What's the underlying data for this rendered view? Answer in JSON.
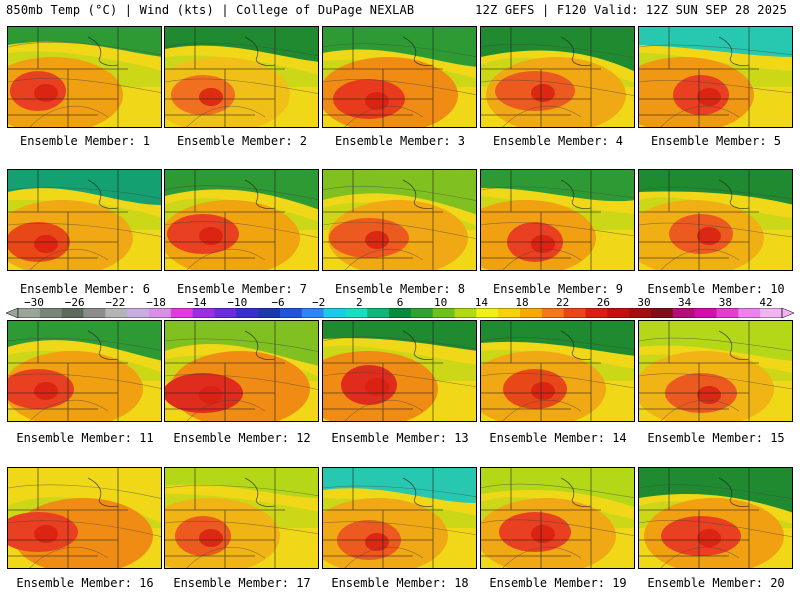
{
  "header": {
    "left": "850mb Temp (°C) | Wind (kts) | College of DuPage NEXLAB",
    "right": "12Z GEFS | F120 Valid: 12Z SUN SEP 28 2025"
  },
  "label_prefix": "Ensemble Member:",
  "members": [
    {
      "number": "1"
    },
    {
      "number": "2"
    },
    {
      "number": "3"
    },
    {
      "number": "4"
    },
    {
      "number": "5"
    },
    {
      "number": "6"
    },
    {
      "number": "7"
    },
    {
      "number": "8"
    },
    {
      "number": "9"
    },
    {
      "number": "10"
    },
    {
      "number": "11"
    },
    {
      "number": "12"
    },
    {
      "number": "13"
    },
    {
      "number": "14"
    },
    {
      "number": "15"
    },
    {
      "number": "16"
    },
    {
      "number": "17"
    },
    {
      "number": "18"
    },
    {
      "number": "19"
    },
    {
      "number": "20"
    }
  ],
  "colorbar": {
    "labels": [
      "-30",
      "-26",
      "-22",
      "-18",
      "-14",
      "-10",
      "-6",
      "-2",
      "2",
      "6",
      "10",
      "14",
      "18",
      "22",
      "26",
      "30",
      "34",
      "38",
      "42"
    ],
    "colors": [
      "#9aa59a",
      "#7a857a",
      "#5f6a5f",
      "#8c8c8c",
      "#b4b4b4",
      "#c8aee0",
      "#d98ee8",
      "#e03be0",
      "#9d2ee0",
      "#6a2ed8",
      "#3a2ec8",
      "#1a3aa8",
      "#1e56d8",
      "#2e86f0",
      "#1ec8e8",
      "#1edcc0",
      "#14b478",
      "#0a8a3c",
      "#2ea32e",
      "#6cc020",
      "#b4d818",
      "#f0f018",
      "#f8d010",
      "#f8a808",
      "#f07820",
      "#e84818",
      "#d82010",
      "#c01010",
      "#a01010",
      "#801018",
      "#b01078",
      "#d010b0",
      "#e040d0",
      "#f080f0",
      "#f0b4f0"
    ]
  },
  "member_temps": [
    {
      "north": "#2e9a34",
      "mid": "#f0a010",
      "hot": "#e84020"
    },
    {
      "north": "#1f8a30",
      "mid": "#f0c018",
      "hot": "#f07020"
    },
    {
      "north": "#2e9a34",
      "mid": "#f08c14",
      "hot": "#e83a1c"
    },
    {
      "north": "#1f8a30",
      "mid": "#f0a814",
      "hot": "#ec5a20"
    },
    {
      "north": "#28c8b0",
      "mid": "#f09814",
      "hot": "#e84020"
    },
    {
      "north": "#14a070",
      "mid": "#f0a814",
      "hot": "#e84818"
    },
    {
      "north": "#2e9a34",
      "mid": "#f0a410",
      "hot": "#e84020"
    },
    {
      "north": "#80c020",
      "mid": "#f0a814",
      "hot": "#ec5a20"
    },
    {
      "north": "#2e9a34",
      "mid": "#f0a010",
      "hot": "#e84020"
    },
    {
      "north": "#1f8a30",
      "mid": "#f0b014",
      "hot": "#ec5a20"
    },
    {
      "north": "#2e9a34",
      "mid": "#f0a010",
      "hot": "#e84020"
    },
    {
      "north": "#80c020",
      "mid": "#f08c14",
      "hot": "#e02c1c"
    },
    {
      "north": "#1f8a30",
      "mid": "#f08c14",
      "hot": "#e02c1c"
    },
    {
      "north": "#1f8a30",
      "mid": "#f0a814",
      "hot": "#e84818"
    },
    {
      "north": "#b4d818",
      "mid": "#f0b414",
      "hot": "#ec5a20"
    },
    {
      "north": "#f0d818",
      "mid": "#f08c14",
      "hot": "#e84020"
    },
    {
      "north": "#b4d818",
      "mid": "#f0b414",
      "hot": "#ec5a20"
    },
    {
      "north": "#28c8b0",
      "mid": "#f0a814",
      "hot": "#ec5a20"
    },
    {
      "north": "#b4d818",
      "mid": "#f0a814",
      "hot": "#e84020"
    },
    {
      "north": "#1f8a30",
      "mid": "#f0a010",
      "hot": "#e84020"
    }
  ]
}
